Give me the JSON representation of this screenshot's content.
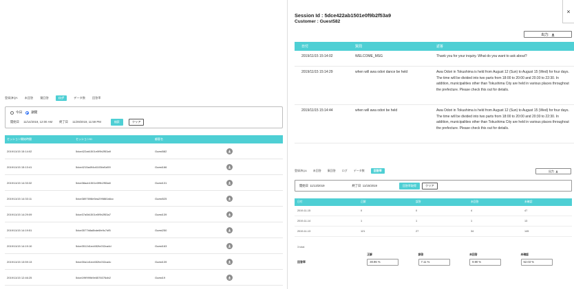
{
  "left": {
    "tabs": [
      "登録済QA",
      "未回答",
      "棄回答",
      "ログ",
      "データ数",
      "回答率"
    ],
    "active_tab_index": 3,
    "filter": {
      "radio_today": "今日",
      "radio_period": "期間",
      "start_label": "開始日",
      "start_value": "11/14/2019, 12:00 AM",
      "end_label": "終了日",
      "end_value": "11/29/2019, 11:59 PM",
      "search_button": "検索",
      "clear_button": "クリア"
    },
    "table": {
      "headers": [
        "セッション開始時間",
        "セッションID",
        "顧客名"
      ],
      "rows": [
        [
          "2019/11/15 15:14:02",
          "5dce422ab1501e0f9b2f53a9",
          "Guest582"
        ],
        [
          "2019/11/15 15:13:41",
          "5dce4215a494c6103faf1d59",
          "Guest166"
        ],
        [
          "2019/11/15 14:33:32",
          "5dce38acb1501e0f9b2f53a8",
          "Guest131"
        ],
        [
          "2019/11/15 14:33:11",
          "5dce3897698e5ea299860a6cc",
          "Guest525"
        ],
        [
          "2019/11/15 14:29:09",
          "5dce37a5b1501e0f9b2f53a7",
          "Guest139"
        ],
        [
          "2019/11/15 14:19:51",
          "5dce3577b8a8bde6fe9c7df5",
          "Guest250"
        ],
        [
          "2019/11/15 14:19:10",
          "5dce3512d1ed452fc032ca4d",
          "Guest163"
        ],
        [
          "2019/11/15 13:59:13",
          "5dce30a1d1ed452fc032ca4c",
          "Guest139"
        ],
        [
          "2019/11/15 12:46:25",
          "5dce1f9f999b9e6576076db2",
          "Guest19"
        ]
      ]
    }
  },
  "modal": {
    "session_label": "Session Id : ",
    "session_value": "5dce422ab1501e0f9b2f53a9",
    "customer_label": "Customer : ",
    "customer_value": "Guest582",
    "close": "×",
    "output_button": "出力:",
    "log_headers": [
      "日付",
      "質問",
      "返答"
    ],
    "log_rows": [
      {
        "date": "2019/11/15 15:14:02",
        "question": "WELCOME_MSG",
        "answer": "Thank you for your inquiry. What do you want to ask about?"
      },
      {
        "date": "2019/11/15 15:14:29",
        "question": "when will awa odori dance be held",
        "answer": "Awa Odori in Tokushima is held from August 12 (Sun) to August 15 (Wed) for four days. The time will be divided into two parts from 18:00 to 20:00 and 20:30 to 22:30. In addition, municipalities other than Tokushima City are held in various places throughout the prefecture. Please check this out for details."
      },
      {
        "date": "2019/11/15 15:14:44",
        "question": "when will awa odori be held",
        "answer": "Awa Odori in Tokushima is held from August 12 (Sun) to August 15 (Wed) for four days. The time will be divided into two parts from 18:00 to 20:00 and 20:30 to 22:30. In addition, municipalities other than Tokushima City are held in various places throughout the prefecture. Please check this out for details."
      }
    ],
    "inner": {
      "tabs": [
        "登録済QA",
        "未回答",
        "棄回答",
        "ログ",
        "データ数",
        "回答率"
      ],
      "active_tab_index": 5,
      "output_button": "出力",
      "start_label": "開始日",
      "start_value": "11/13/2019",
      "end_label": "終了日",
      "end_value": "11/15/2019",
      "aggregate_button": "回答率取得",
      "clear_button": "クリア",
      "headers": [
        "日付",
        "正解",
        "誤答",
        "未回答",
        "未確認"
      ],
      "rows": [
        [
          "2019-11-15",
          "0",
          "0",
          "4",
          "47"
        ],
        [
          "2019-11-14",
          "1",
          "1",
          "1",
          "13"
        ],
        [
          "2019-11-13",
          "121",
          "27",
          "34",
          "145"
        ]
      ],
      "total": "3 total",
      "rates_label": "回答率",
      "rate_headers": [
        "正解",
        "誤答",
        "未回答",
        "未確認"
      ],
      "rate_values": [
        "30.96 %",
        "7.11 %",
        "9.90 %",
        "52.03 %"
      ]
    }
  },
  "colors": {
    "accent": "#4ecfd4",
    "radio": "#2a6df4"
  }
}
